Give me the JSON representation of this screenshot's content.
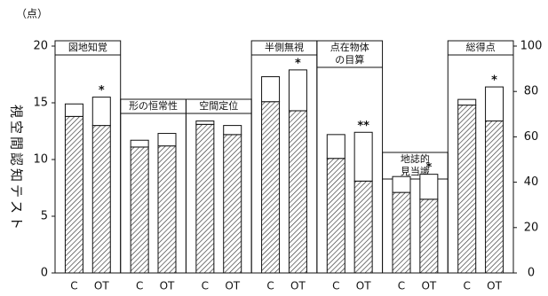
{
  "chart_data": {
    "type": "bar",
    "stacked": true,
    "unit_label": "（点）",
    "ylabel": "視空間認知テスト",
    "categories": [
      "C",
      "OT",
      "C",
      "OT",
      "C",
      "OT",
      "C",
      "OT",
      "C",
      "OT",
      "C",
      "OT",
      "C",
      "OT"
    ],
    "groups": [
      [
        "図地知覚"
      ],
      [
        "形の恒常性"
      ],
      [
        "空間定位"
      ],
      [
        "半側無視"
      ],
      [
        "点在物体",
        "の目算"
      ],
      [
        "地誌的",
        "見当識"
      ],
      [
        "総得点"
      ]
    ],
    "series": [
      {
        "color": "hatch",
        "values": [
          13.8,
          13.0,
          11.1,
          11.2,
          13.1,
          12.2,
          15.1,
          14.3,
          10.1,
          8.1,
          7.1,
          6.5,
          null,
          null
        ]
      },
      {
        "color": "#ffffff",
        "values": [
          1.1,
          2.5,
          0.6,
          1.1,
          0.3,
          0.8,
          2.2,
          3.6,
          2.1,
          4.3,
          1.4,
          2.2,
          null,
          null
        ]
      },
      {
        "color": "hatch",
        "axis": "y2",
        "values": [
          null,
          null,
          null,
          null,
          null,
          null,
          null,
          null,
          null,
          null,
          null,
          null,
          74,
          67
        ]
      },
      {
        "color": "#ffffff",
        "axis": "y2",
        "values": [
          null,
          null,
          null,
          null,
          null,
          null,
          null,
          null,
          null,
          null,
          null,
          null,
          2.5,
          15
        ]
      }
    ],
    "significance": [
      null,
      "*",
      null,
      null,
      null,
      null,
      null,
      "*",
      null,
      "**",
      null,
      "*",
      null,
      "*"
    ],
    "ylim": [
      0,
      20
    ],
    "yticks": [
      0,
      5,
      10,
      15,
      20
    ],
    "y2lim": [
      0,
      100
    ],
    "y2ticks": [
      0,
      20,
      40,
      60,
      80,
      100
    ]
  }
}
